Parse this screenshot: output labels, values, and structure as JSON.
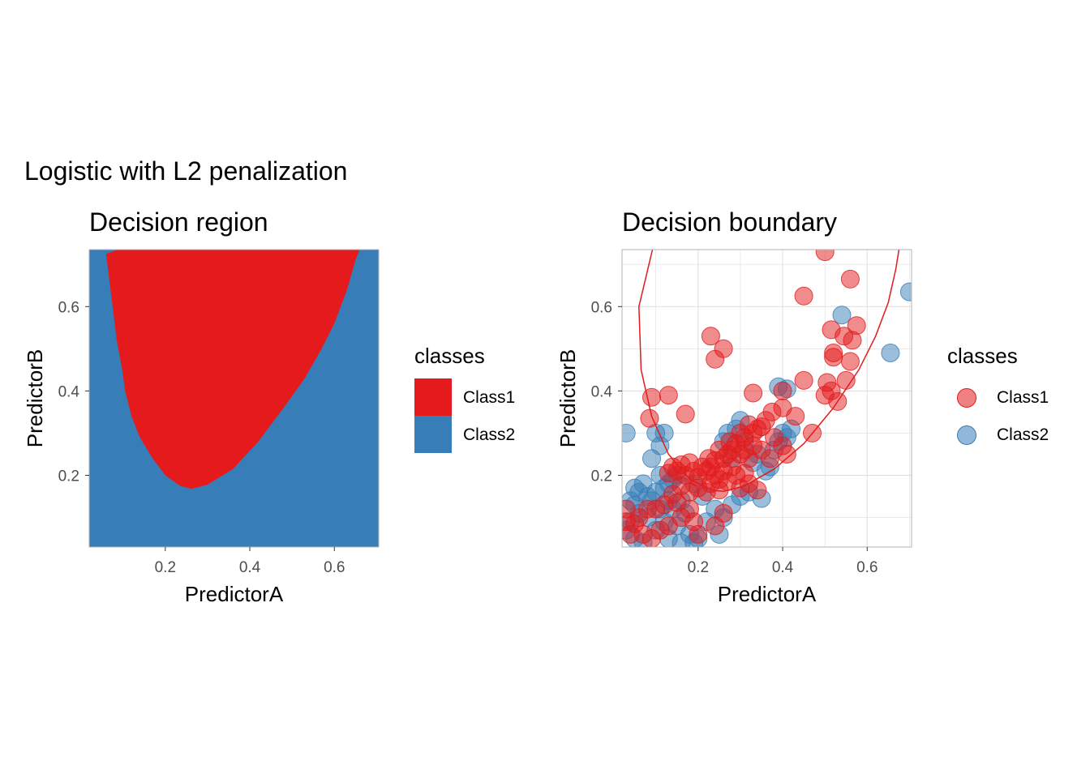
{
  "title": "Logistic with L2 penalization",
  "colors": {
    "class1": "#E41A1C",
    "class2": "#377EB8",
    "grid": "#DEDEDE",
    "border": "#B3B3B3"
  },
  "chart_data": [
    {
      "type": "heatmap",
      "title": "Decision region",
      "xlabel": "PredictorA",
      "ylabel": "PredictorB",
      "xlim": [
        0.02,
        0.705
      ],
      "ylim": [
        0.03,
        0.735
      ],
      "xticks": [
        "0.2",
        "0.4",
        "0.6"
      ],
      "yticks": [
        "0.2",
        "0.4",
        "0.6"
      ],
      "legend": {
        "title": "classes",
        "position": "right",
        "items": [
          {
            "label": "Class1",
            "color": "#E41A1C"
          },
          {
            "label": "Class2",
            "color": "#377EB8"
          }
        ]
      },
      "background_class": "Class2",
      "region_class1_boundary": [
        [
          0.06,
          0.725
        ],
        [
          0.078,
          0.58
        ],
        [
          0.085,
          0.52
        ],
        [
          0.098,
          0.45
        ],
        [
          0.105,
          0.4
        ],
        [
          0.12,
          0.34
        ],
        [
          0.14,
          0.29
        ],
        [
          0.17,
          0.24
        ],
        [
          0.2,
          0.2
        ],
        [
          0.235,
          0.175
        ],
        [
          0.262,
          0.168
        ],
        [
          0.3,
          0.178
        ],
        [
          0.36,
          0.215
        ],
        [
          0.42,
          0.28
        ],
        [
          0.48,
          0.36
        ],
        [
          0.53,
          0.43
        ],
        [
          0.57,
          0.5
        ],
        [
          0.6,
          0.56
        ],
        [
          0.63,
          0.64
        ],
        [
          0.65,
          0.71
        ],
        [
          0.66,
          0.735
        ],
        [
          0.087,
          0.735
        ]
      ]
    },
    {
      "type": "scatter",
      "title": "Decision boundary",
      "xlabel": "PredictorA",
      "ylabel": "PredictorB",
      "xlim": [
        0.02,
        0.705
      ],
      "ylim": [
        0.03,
        0.735
      ],
      "xticks": [
        "0.2",
        "0.4",
        "0.6"
      ],
      "yticks": [
        "0.2",
        "0.4",
        "0.6"
      ],
      "grid": true,
      "legend": {
        "title": "classes",
        "position": "right",
        "items": [
          {
            "label": "Class1",
            "color": "#E41A1C"
          },
          {
            "label": "Class2",
            "color": "#377EB8"
          }
        ]
      },
      "boundary": [
        [
          0.092,
          0.735
        ],
        [
          0.06,
          0.6
        ],
        [
          0.065,
          0.45
        ],
        [
          0.09,
          0.34
        ],
        [
          0.13,
          0.25
        ],
        [
          0.18,
          0.19
        ],
        [
          0.235,
          0.164
        ],
        [
          0.262,
          0.162
        ],
        [
          0.31,
          0.175
        ],
        [
          0.38,
          0.215
        ],
        [
          0.45,
          0.275
        ],
        [
          0.52,
          0.36
        ],
        [
          0.58,
          0.45
        ],
        [
          0.62,
          0.53
        ],
        [
          0.65,
          0.61
        ],
        [
          0.668,
          0.69
        ],
        [
          0.675,
          0.735
        ]
      ],
      "series": [
        {
          "name": "Class1",
          "points": [
            [
              0.5,
              0.73
            ],
            [
              0.45,
              0.625
            ],
            [
              0.56,
              0.665
            ],
            [
              0.23,
              0.53
            ],
            [
              0.26,
              0.5
            ],
            [
              0.24,
              0.475
            ],
            [
              0.575,
              0.555
            ],
            [
              0.515,
              0.545
            ],
            [
              0.545,
              0.53
            ],
            [
              0.565,
              0.52
            ],
            [
              0.52,
              0.48
            ],
            [
              0.52,
              0.49
            ],
            [
              0.56,
              0.47
            ],
            [
              0.55,
              0.425
            ],
            [
              0.505,
              0.42
            ],
            [
              0.515,
              0.4
            ],
            [
              0.5,
              0.39
            ],
            [
              0.53,
              0.375
            ],
            [
              0.45,
              0.425
            ],
            [
              0.4,
              0.4
            ],
            [
              0.33,
              0.395
            ],
            [
              0.09,
              0.385
            ],
            [
              0.13,
              0.39
            ],
            [
              0.085,
              0.335
            ],
            [
              0.17,
              0.345
            ],
            [
              0.43,
              0.34
            ],
            [
              0.47,
              0.3
            ],
            [
              0.4,
              0.36
            ],
            [
              0.375,
              0.35
            ],
            [
              0.36,
              0.33
            ],
            [
              0.35,
              0.315
            ],
            [
              0.34,
              0.31
            ],
            [
              0.33,
              0.3
            ],
            [
              0.32,
              0.32
            ],
            [
              0.31,
              0.29
            ],
            [
              0.3,
              0.3
            ],
            [
              0.29,
              0.275
            ],
            [
              0.28,
              0.26
            ],
            [
              0.275,
              0.28
            ],
            [
              0.27,
              0.25
            ],
            [
              0.26,
              0.24
            ],
            [
              0.25,
              0.26
            ],
            [
              0.24,
              0.235
            ],
            [
              0.23,
              0.22
            ],
            [
              0.225,
              0.24
            ],
            [
              0.22,
              0.21
            ],
            [
              0.21,
              0.22
            ],
            [
              0.2,
              0.195
            ],
            [
              0.19,
              0.21
            ],
            [
              0.18,
              0.23
            ],
            [
              0.17,
              0.2
            ],
            [
              0.16,
              0.225
            ],
            [
              0.15,
              0.21
            ],
            [
              0.14,
              0.22
            ],
            [
              0.13,
              0.205
            ],
            [
              0.3,
              0.25
            ],
            [
              0.31,
              0.26
            ],
            [
              0.32,
              0.24
            ],
            [
              0.33,
              0.27
            ],
            [
              0.35,
              0.26
            ],
            [
              0.38,
              0.29
            ],
            [
              0.4,
              0.27
            ],
            [
              0.41,
              0.25
            ],
            [
              0.37,
              0.24
            ],
            [
              0.28,
              0.22
            ],
            [
              0.26,
              0.21
            ],
            [
              0.25,
              0.19
            ],
            [
              0.24,
              0.2
            ],
            [
              0.23,
              0.18
            ],
            [
              0.27,
              0.185
            ],
            [
              0.29,
              0.2
            ],
            [
              0.31,
              0.205
            ],
            [
              0.32,
              0.18
            ],
            [
              0.3,
              0.17
            ],
            [
              0.34,
              0.165
            ],
            [
              0.25,
              0.165
            ],
            [
              0.22,
              0.16
            ],
            [
              0.2,
              0.17
            ],
            [
              0.18,
              0.16
            ],
            [
              0.16,
              0.175
            ],
            [
              0.14,
              0.155
            ],
            [
              0.12,
              0.13
            ],
            [
              0.1,
              0.12
            ],
            [
              0.08,
              0.12
            ],
            [
              0.06,
              0.1
            ],
            [
              0.05,
              0.085
            ],
            [
              0.03,
              0.12
            ],
            [
              0.04,
              0.06
            ],
            [
              0.09,
              0.05
            ],
            [
              0.07,
              0.06
            ],
            [
              0.11,
              0.07
            ],
            [
              0.18,
              0.12
            ],
            [
              0.16,
              0.1
            ],
            [
              0.24,
              0.08
            ],
            [
              0.2,
              0.06
            ],
            [
              0.26,
              0.11
            ],
            [
              0.13,
              0.08
            ],
            [
              0.15,
              0.135
            ],
            [
              0.19,
              0.09
            ],
            [
              0.03,
              0.09
            ]
          ]
        },
        {
          "name": "Class2",
          "points": [
            [
              0.7,
              0.635
            ],
            [
              0.54,
              0.58
            ],
            [
              0.655,
              0.49
            ],
            [
              0.39,
              0.41
            ],
            [
              0.41,
              0.405
            ],
            [
              0.03,
              0.3
            ],
            [
              0.1,
              0.3
            ],
            [
              0.12,
              0.3
            ],
            [
              0.11,
              0.27
            ],
            [
              0.09,
              0.24
            ],
            [
              0.07,
              0.18
            ],
            [
              0.06,
              0.16
            ],
            [
              0.04,
              0.14
            ],
            [
              0.05,
              0.13
            ],
            [
              0.08,
              0.15
            ],
            [
              0.1,
              0.16
            ],
            [
              0.12,
              0.17
            ],
            [
              0.14,
              0.19
            ],
            [
              0.15,
              0.2
            ],
            [
              0.11,
              0.2
            ],
            [
              0.13,
              0.18
            ],
            [
              0.09,
              0.14
            ],
            [
              0.06,
              0.11
            ],
            [
              0.04,
              0.09
            ],
            [
              0.03,
              0.07
            ],
            [
              0.05,
              0.05
            ],
            [
              0.07,
              0.04
            ],
            [
              0.1,
              0.07
            ],
            [
              0.12,
              0.09
            ],
            [
              0.14,
              0.12
            ],
            [
              0.16,
              0.14
            ],
            [
              0.17,
              0.11
            ],
            [
              0.15,
              0.08
            ],
            [
              0.18,
              0.06
            ],
            [
              0.2,
              0.05
            ],
            [
              0.22,
              0.09
            ],
            [
              0.24,
              0.12
            ],
            [
              0.26,
              0.1
            ],
            [
              0.28,
              0.13
            ],
            [
              0.3,
              0.15
            ],
            [
              0.32,
              0.16
            ],
            [
              0.35,
              0.145
            ],
            [
              0.36,
              0.21
            ],
            [
              0.37,
              0.22
            ],
            [
              0.33,
              0.23
            ],
            [
              0.34,
              0.25
            ],
            [
              0.31,
              0.28
            ],
            [
              0.29,
              0.31
            ],
            [
              0.3,
              0.33
            ],
            [
              0.27,
              0.3
            ],
            [
              0.26,
              0.28
            ],
            [
              0.28,
              0.24
            ],
            [
              0.41,
              0.29
            ],
            [
              0.4,
              0.3
            ],
            [
              0.42,
              0.31
            ],
            [
              0.39,
              0.28
            ],
            [
              0.38,
              0.26
            ],
            [
              0.13,
              0.05
            ],
            [
              0.16,
              0.04
            ],
            [
              0.25,
              0.06
            ],
            [
              0.19,
              0.04
            ],
            [
              0.08,
              0.1
            ],
            [
              0.11,
              0.12
            ],
            [
              0.05,
              0.17
            ],
            [
              0.13,
              0.14
            ],
            [
              0.19,
              0.18
            ],
            [
              0.21,
              0.15
            ]
          ]
        }
      ]
    }
  ]
}
